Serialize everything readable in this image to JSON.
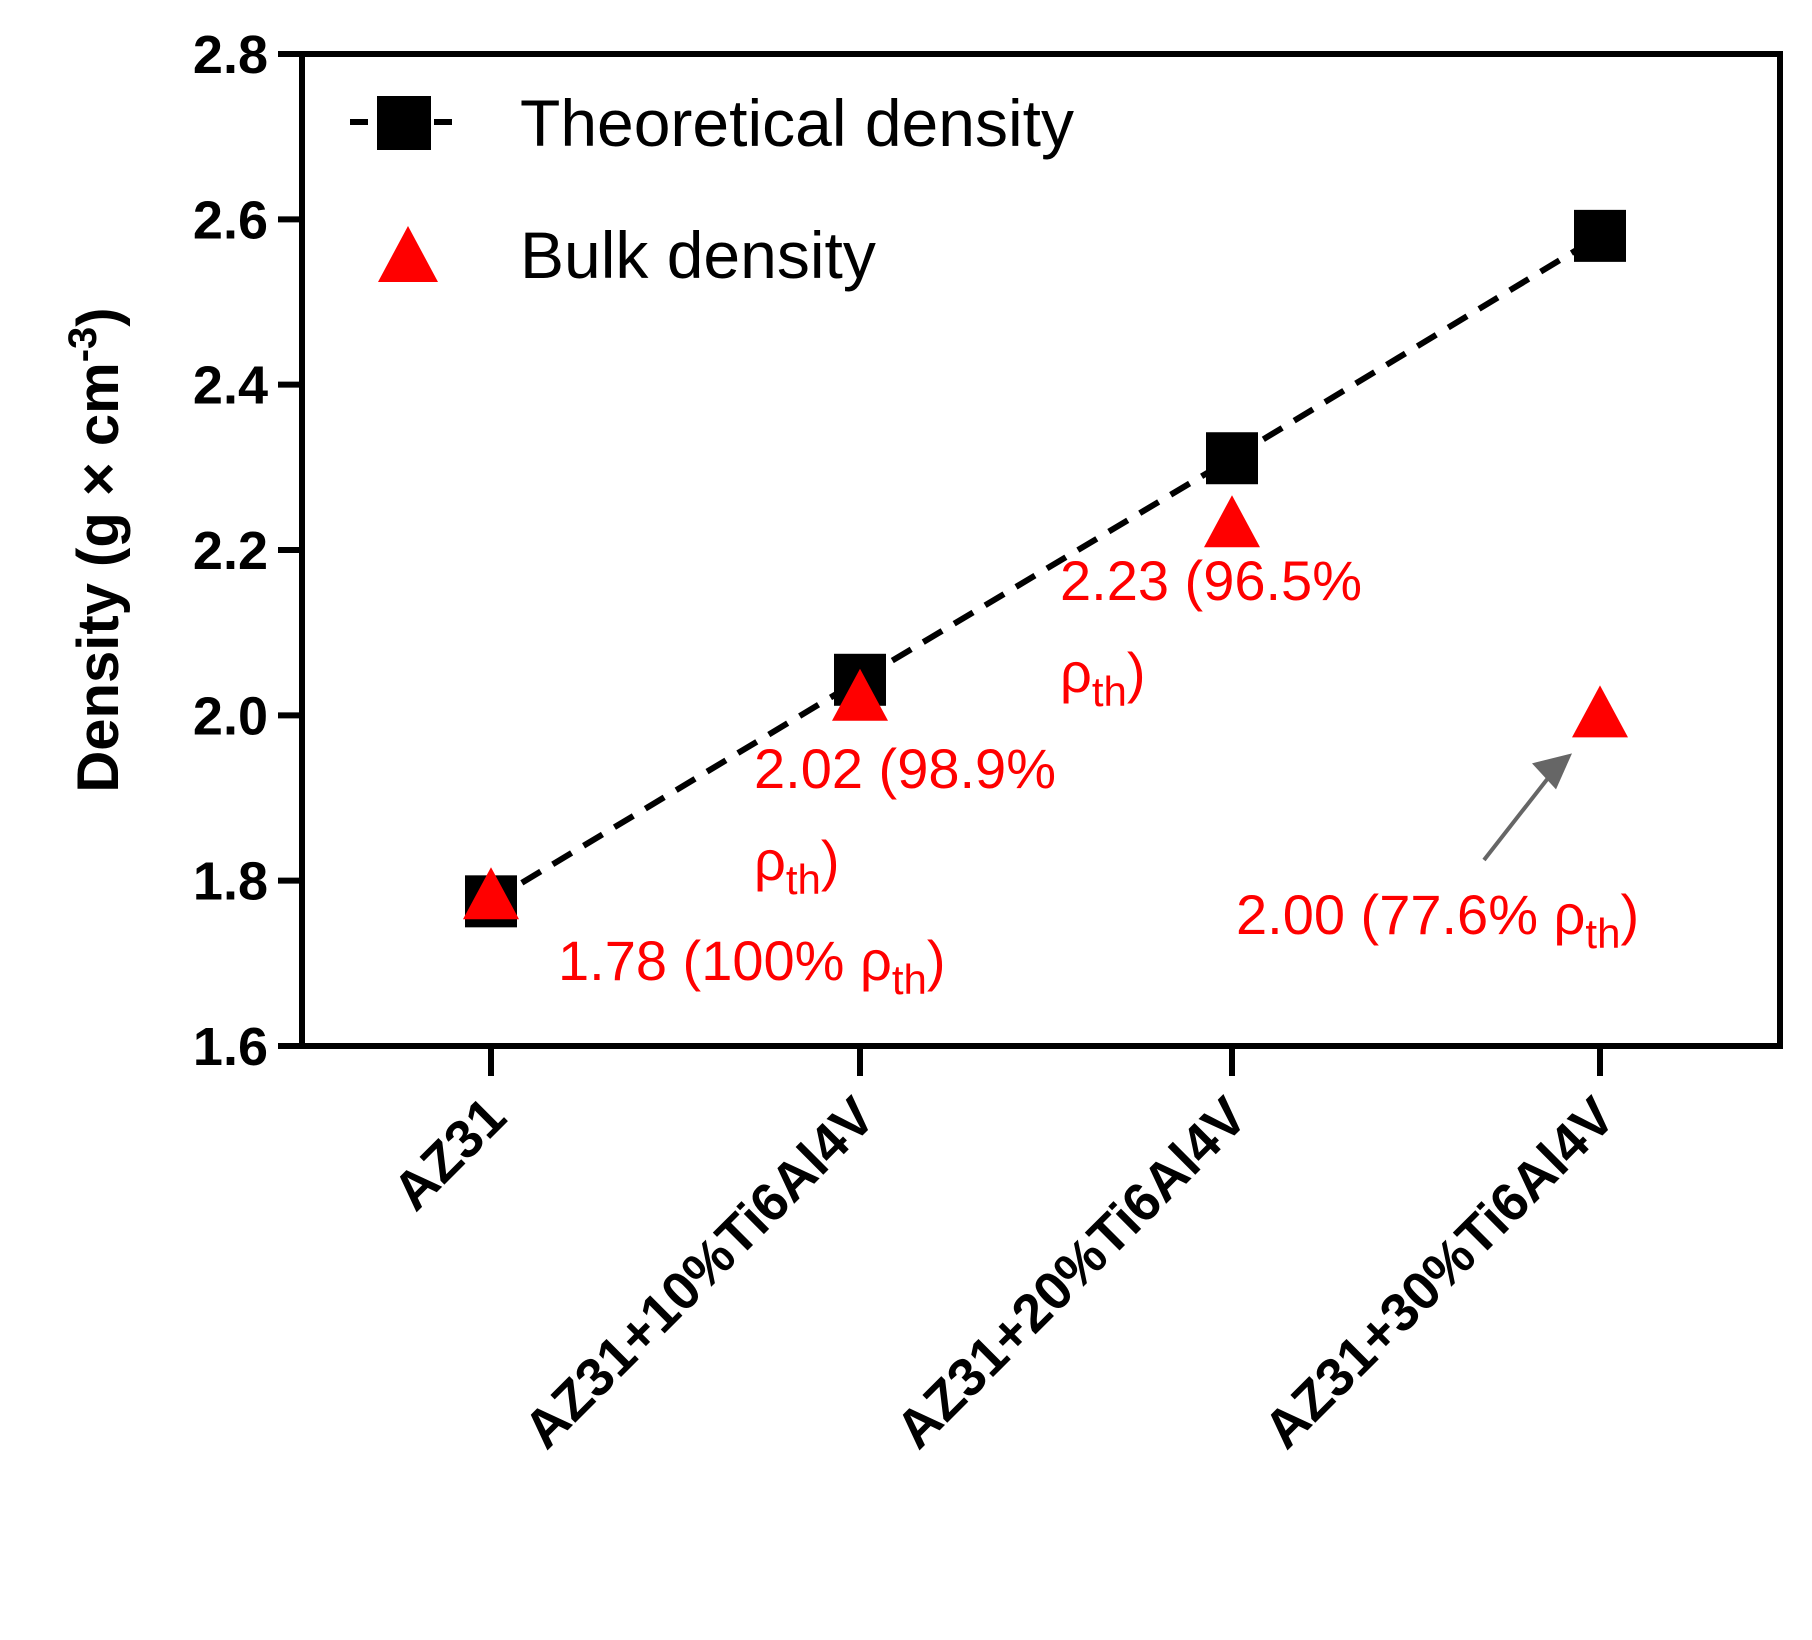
{
  "chart_data": {
    "type": "scatter",
    "title": "",
    "xlabel": "",
    "ylabel": "Density (g × cm",
    "ylabel_sup": "-3",
    "ylabel_close": ")",
    "ylim": [
      1.6,
      2.8
    ],
    "yticks": [
      1.6,
      1.8,
      2.0,
      2.2,
      2.4,
      2.6,
      2.8
    ],
    "ytick_labels": [
      "1.6",
      "1.8",
      "2.0",
      "2.2",
      "2.4",
      "2.6",
      "2.8"
    ],
    "categories": [
      "AZ31",
      "AZ31+10%Ti6Al4V",
      "AZ31+20%Ti6Al4V",
      "AZ31+30%Ti6Al4V"
    ],
    "grid": false,
    "legend_position": "top-left",
    "series": [
      {
        "name": "Theoretical density",
        "marker": "square",
        "line": "dashed",
        "color": "#000000",
        "values": [
          1.775,
          2.043,
          2.311,
          2.58
        ]
      },
      {
        "name": "Bulk density",
        "marker": "triangle",
        "line": "none",
        "color": "#ff0000",
        "values": [
          1.78,
          2.02,
          2.23,
          2.0
        ]
      }
    ],
    "annotations": [
      {
        "category": "AZ31",
        "lines": [
          {
            "text": "1.78 (100% ρ",
            "sub": "th",
            "close": ")"
          }
        ]
      },
      {
        "category": "AZ31+10%Ti6Al4V",
        "lines": [
          {
            "text": "2.02 (98.9%",
            "sub": "",
            "close": ""
          },
          {
            "text": "ρ",
            "sub": "th",
            "close": ")"
          }
        ]
      },
      {
        "category": "AZ31+20%Ti6Al4V",
        "lines": [
          {
            "text": "2.23 (96.5%",
            "sub": "",
            "close": ""
          },
          {
            "text": "ρ",
            "sub": "th",
            "close": ")"
          }
        ]
      },
      {
        "category": "AZ31+30%Ti6Al4V",
        "lines": [
          {
            "text": "2.00 (77.6% ρ",
            "sub": "th",
            "close": ")"
          }
        ],
        "arrow": true
      }
    ],
    "arrow_color": "#666666"
  }
}
